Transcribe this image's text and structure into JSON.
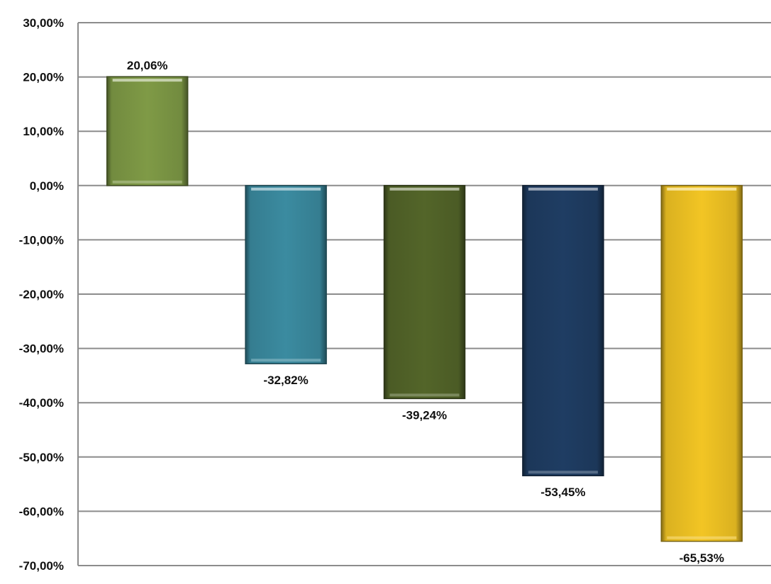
{
  "chart_data": {
    "type": "bar",
    "title": "",
    "xlabel": "",
    "ylabel": "",
    "categories": [
      "",
      "",
      "",
      "",
      ""
    ],
    "values": [
      20.06,
      -32.82,
      -39.24,
      -53.45,
      -65.53
    ],
    "data_labels": [
      "20,06%",
      "-32,82%",
      "-39,24%",
      "-53,45%",
      "-65,53%"
    ],
    "colors": [
      "#7f9a46",
      "#3b8ba0",
      "#536529",
      "#1f3d63",
      "#f2c524"
    ],
    "ylim": [
      -70,
      30
    ],
    "yticks": [
      30,
      20,
      10,
      0,
      -10,
      -20,
      -30,
      -40,
      -50,
      -60,
      -70
    ],
    "ytick_labels": [
      "30,00%",
      "20,00%",
      "10,00%",
      "0,00%",
      "-10,00%",
      "-20,00%",
      "-30,00%",
      "-40,00%",
      "-50,00%",
      "-60,00%",
      "-70,00%"
    ],
    "grid": true,
    "legend": "none"
  }
}
